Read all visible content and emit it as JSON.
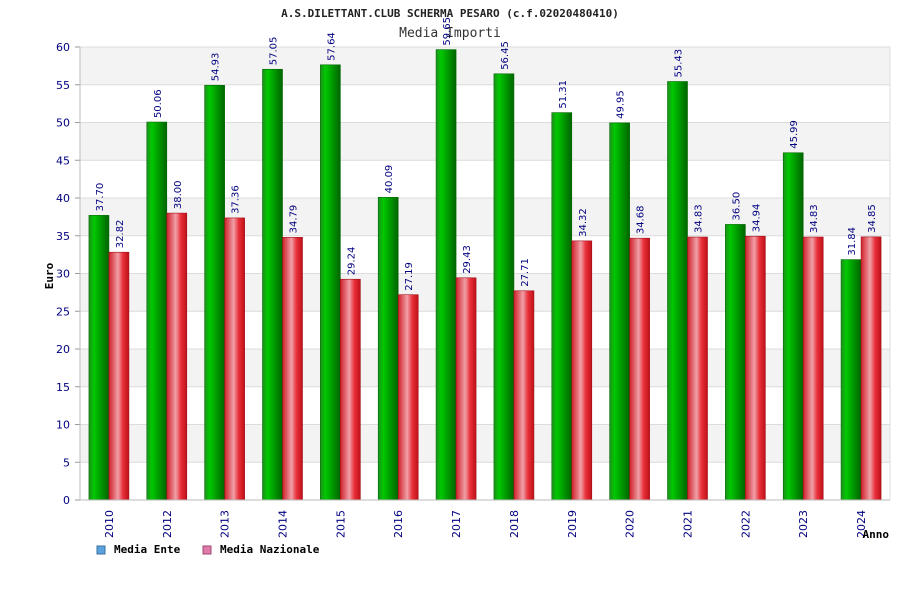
{
  "chart_data": {
    "type": "bar",
    "title": "A.S.DILETTANT.CLUB SCHERMA PESARO (c.f.02020480410)",
    "subtitle": "Media Importi",
    "xlabel": "Anno",
    "ylabel": "Euro",
    "ylim": [
      0,
      60
    ],
    "yticks": [
      0,
      5,
      10,
      15,
      20,
      25,
      30,
      35,
      40,
      45,
      50,
      55,
      60
    ],
    "grid": true,
    "legend_position": "bottom-left",
    "categories": [
      "2010",
      "2012",
      "2013",
      "2014",
      "2015",
      "2016",
      "2017",
      "2018",
      "2019",
      "2020",
      "2021",
      "2022",
      "2023",
      "2024"
    ],
    "series": [
      {
        "name": "Media Ente",
        "color": "#00aa00",
        "legend_color": "#5ba3e0",
        "values": [
          37.7,
          50.06,
          54.93,
          57.05,
          57.64,
          40.09,
          59.65,
          56.45,
          51.31,
          49.95,
          55.43,
          36.5,
          45.99,
          31.84
        ],
        "labels": [
          "37.70",
          "50.06",
          "54.93",
          "57.05",
          "57.64",
          "40.09",
          "59.65",
          "56.45",
          "51.31",
          "49.95",
          "55.43",
          "36.50",
          "45.99",
          "31.84"
        ]
      },
      {
        "name": "Media Nazionale",
        "color": "#e8202a",
        "legend_color": "#e07aa8",
        "values": [
          32.82,
          38.0,
          37.36,
          34.79,
          29.24,
          27.19,
          29.43,
          27.71,
          34.32,
          34.68,
          34.83,
          34.94,
          34.83,
          34.85
        ],
        "labels": [
          "32.82",
          "38.00",
          "37.36",
          "34.79",
          "29.24",
          "27.19",
          "29.43",
          "27.71",
          "34.32",
          "34.68",
          "34.83",
          "34.94",
          "34.83",
          "34.85"
        ]
      }
    ]
  }
}
